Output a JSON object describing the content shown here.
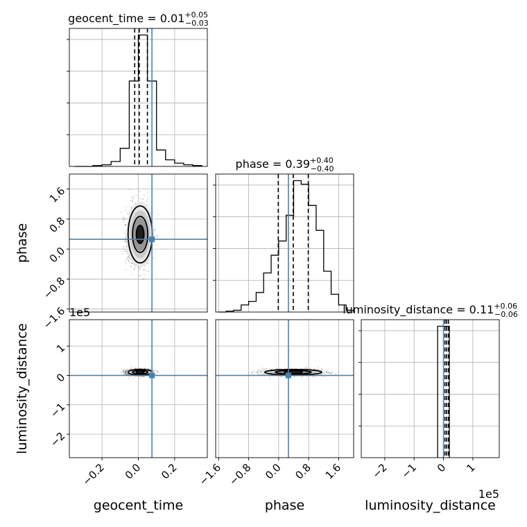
{
  "chart_data": {
    "type": "corner",
    "parameters": [
      {
        "key": "geocent_time",
        "label": "geocent_time",
        "median": 0.01,
        "plus": "+0.05",
        "minus": "−0.03",
        "title_prefix": "geocent_time = 0.01",
        "lim": [
          -0.38,
          0.38
        ],
        "ticks": [
          -0.2,
          0.0,
          0.2
        ],
        "tick_labels": [
          "−0.2",
          "0.0",
          "0.2"
        ],
        "truth": 0.075,
        "quantiles": [
          -0.02,
          0.005,
          0.05
        ]
      },
      {
        "key": "phase",
        "label": "phase",
        "median": 0.39,
        "plus": "+0.40",
        "minus": "−0.40",
        "title_prefix": "phase = 0.39",
        "lim": [
          -1.68,
          2.0
        ],
        "ticks": [
          -1.6,
          -0.8,
          0.0,
          0.8,
          1.6
        ],
        "tick_labels": [
          "−1.6",
          "−0.8",
          "0.0",
          "0.8",
          "1.6"
        ],
        "truth": 0.26,
        "quantiles": [
          -0.01,
          0.39,
          0.79
        ]
      },
      {
        "key": "luminosity_distance",
        "label": "luminosity_distance",
        "median": 0.11,
        "plus": "+0.06",
        "minus": "−0.06",
        "title_prefix": "luminosity_distance = 0.11",
        "lim": [
          -2.8,
          1.9
        ],
        "ticks": [
          -2,
          -1,
          0,
          1
        ],
        "tick_labels": [
          "−2",
          "−1",
          "0",
          "1"
        ],
        "y_tick_labels": [
          "−2",
          "−1",
          "0",
          "1"
        ],
        "offset": "1e5",
        "truth": 0.0,
        "quantiles": [
          0.05,
          0.11,
          0.17
        ]
      }
    ],
    "histograms": {
      "geocent_time": {
        "bin_edges": [
          -0.35,
          -0.3,
          -0.25,
          -0.2,
          -0.15,
          -0.1,
          -0.05,
          0.0,
          0.05,
          0.1,
          0.15,
          0.2,
          0.25,
          0.3,
          0.35
        ],
        "counts": [
          0,
          0,
          1,
          2,
          6,
          22,
          104,
          160,
          104,
          20,
          8,
          4,
          2,
          1
        ]
      },
      "phase": {
        "bin_edges": [
          -1.6,
          -1.4,
          -1.2,
          -1.0,
          -0.8,
          -0.6,
          -0.4,
          -0.2,
          0.0,
          0.2,
          0.4,
          0.6,
          0.8,
          1.0,
          1.2,
          1.4,
          1.6,
          1.8,
          2.0
        ],
        "counts": [
          0,
          1,
          2,
          8,
          12,
          22,
          44,
          64,
          80,
          109,
          148,
          144,
          120,
          92,
          46,
          20,
          8,
          2
        ]
      },
      "luminosity_distance": {
        "bin_edges": [
          -0.2,
          0.0,
          0.2
        ],
        "counts": [
          100,
          100
        ]
      }
    },
    "truth_marker_color": "#4682b4",
    "grid": true
  }
}
